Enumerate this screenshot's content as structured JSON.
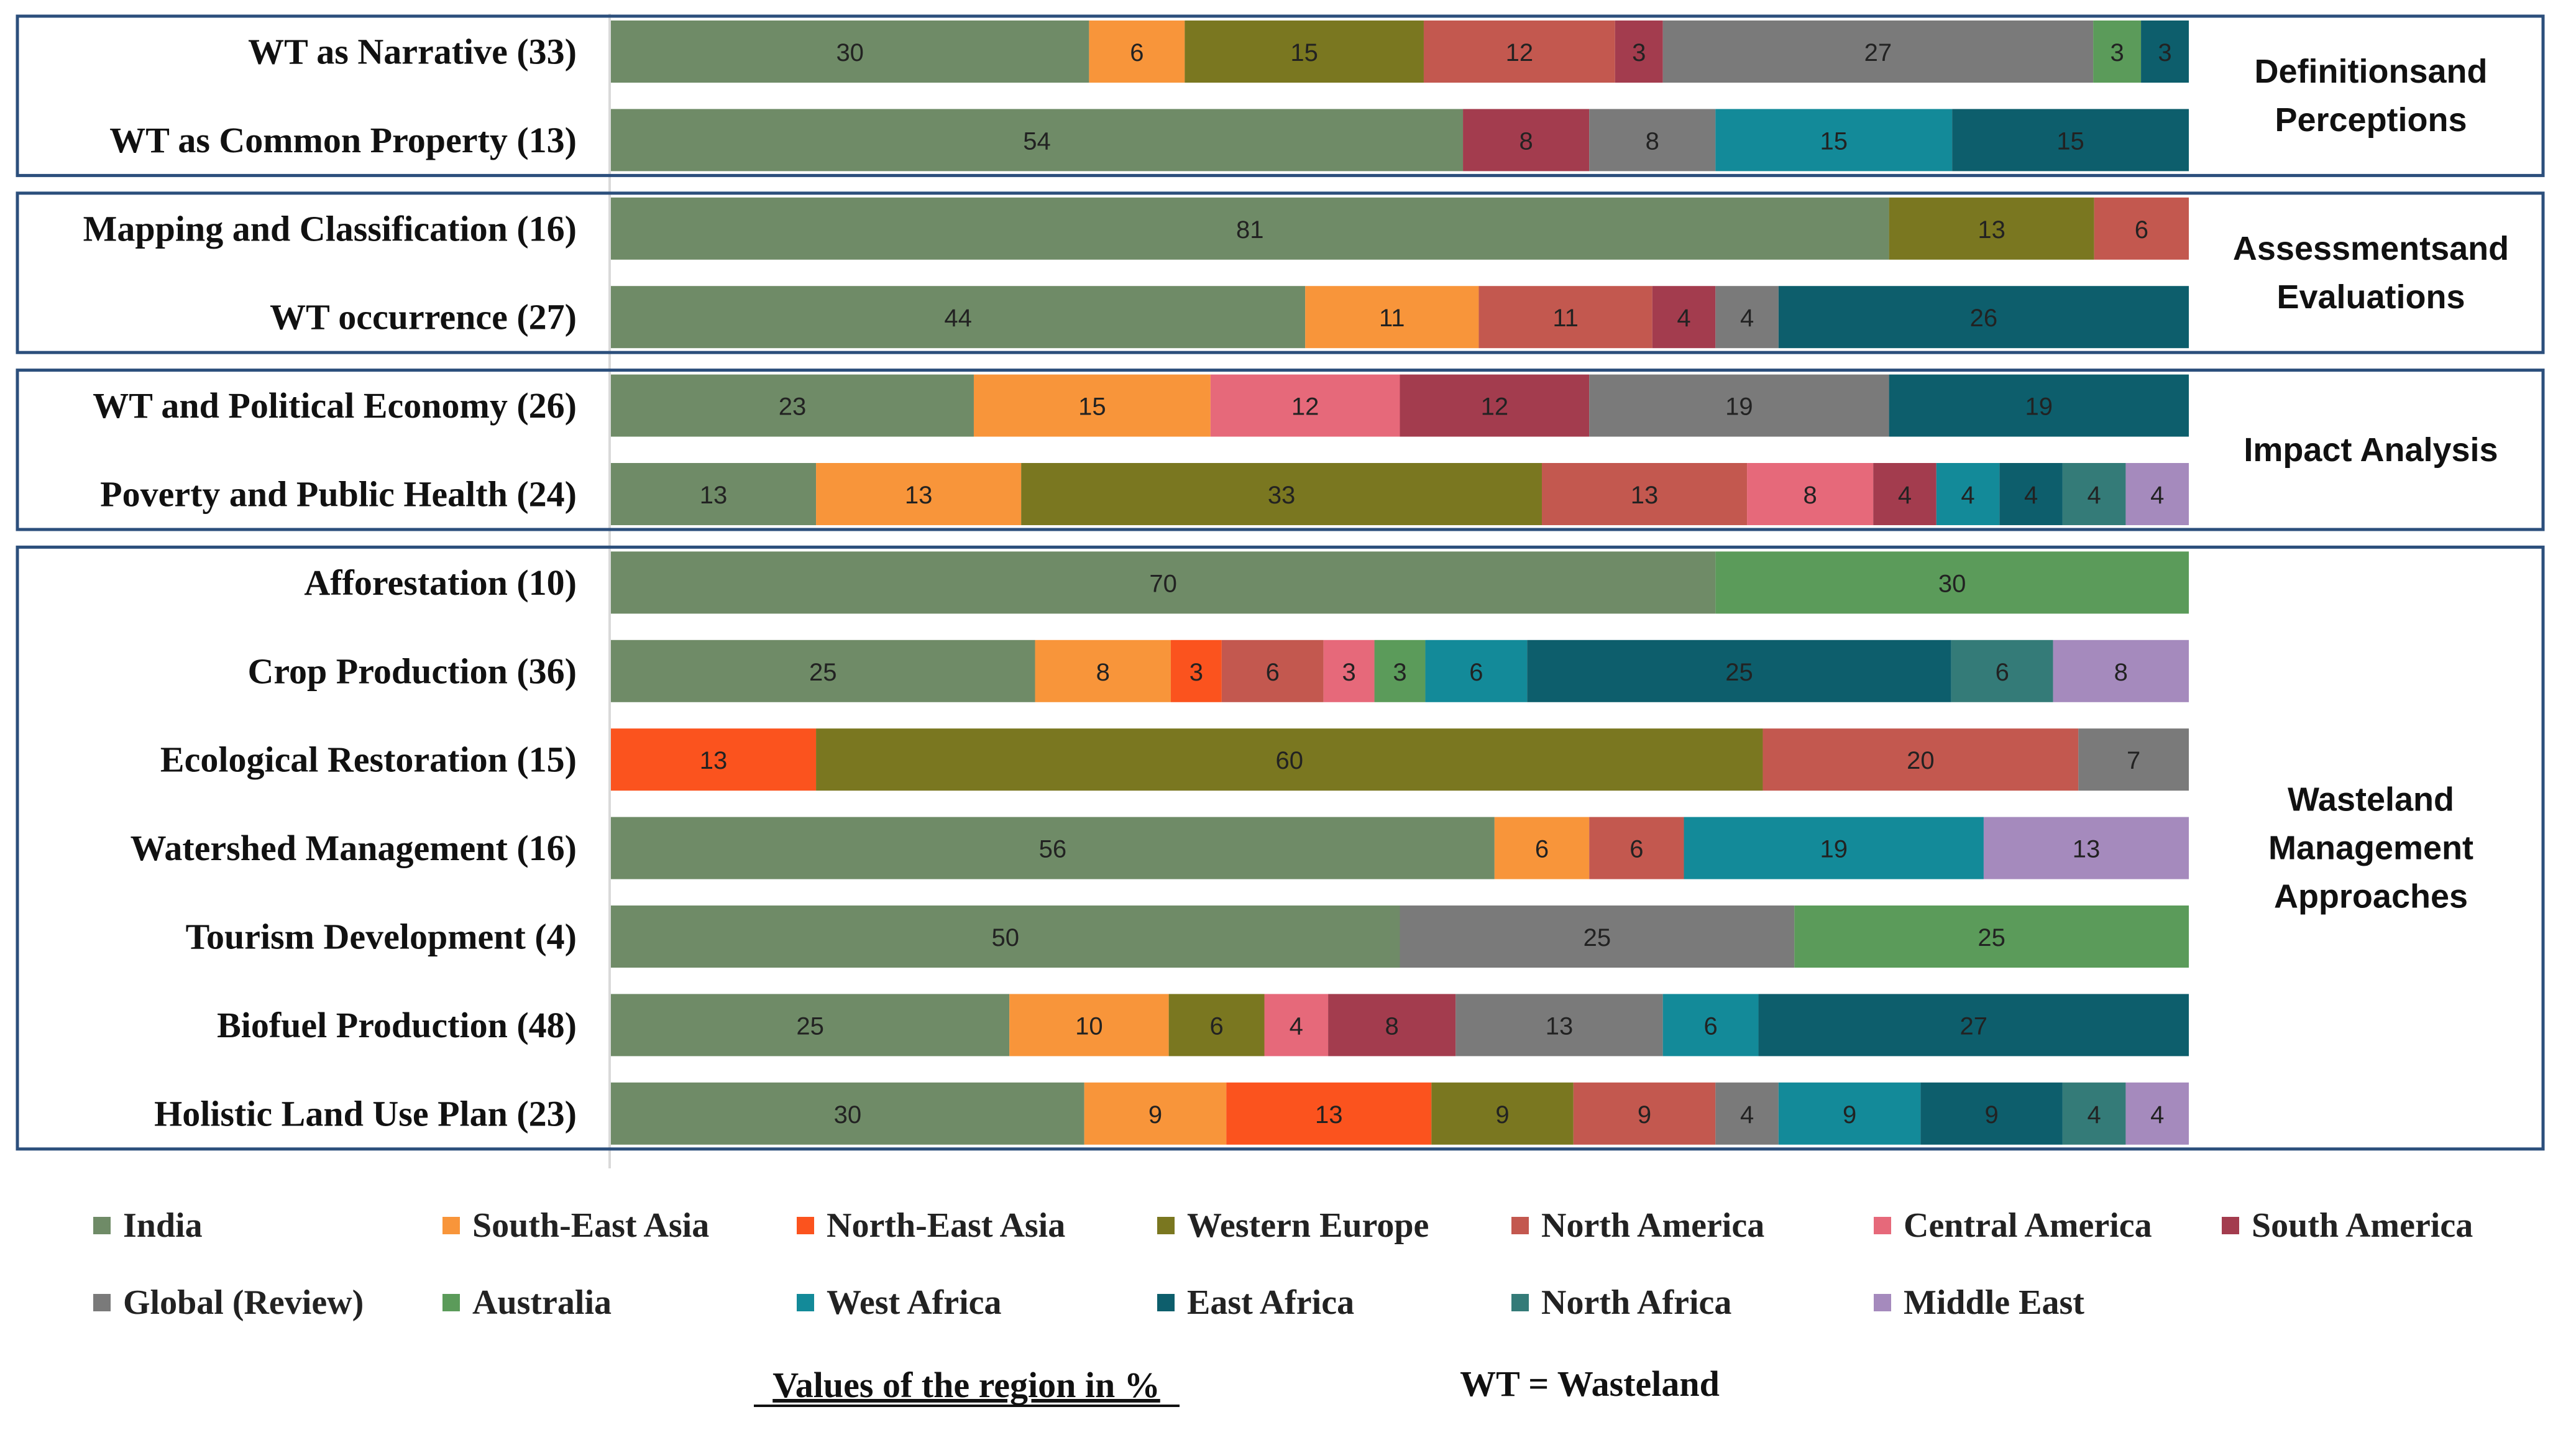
{
  "chart_data": {
    "type": "bar",
    "orientation": "horizontal",
    "stacked": true,
    "unit": "%",
    "xlim": [
      0,
      100
    ],
    "series": [
      {
        "name": "India",
        "color": "#6f8b67"
      },
      {
        "name": "South-East Asia",
        "color": "#f8953a"
      },
      {
        "name": "North-East Asia",
        "color": "#fb531e"
      },
      {
        "name": "Western Europe",
        "color": "#7a7720"
      },
      {
        "name": "North America",
        "color": "#c3584f"
      },
      {
        "name": "Central America",
        "color": "#e6697a"
      },
      {
        "name": "South America",
        "color": "#a33c4e"
      },
      {
        "name": "Global (Review)",
        "color": "#7a7a7a"
      },
      {
        "name": "Australia",
        "color": "#5b9b5a"
      },
      {
        "name": "West Africa",
        "color": "#138a99"
      },
      {
        "name": "East Africa",
        "color": "#0d5e6c"
      },
      {
        "name": "North Africa",
        "color": "#347b78"
      },
      {
        "name": "Middle East",
        "color": "#a58abd"
      }
    ],
    "groups": [
      {
        "label_lines": [
          "Definitionsand",
          "Perceptions"
        ],
        "rows": [
          {
            "label": "WT as Narrative (33)",
            "segments": [
              [
                "India",
                30
              ],
              [
                "South-East Asia",
                6
              ],
              [
                "Western Europe",
                15
              ],
              [
                "North America",
                12
              ],
              [
                "South America",
                3
              ],
              [
                "Global (Review)",
                27
              ],
              [
                "Australia",
                3
              ],
              [
                "East Africa",
                3
              ]
            ]
          },
          {
            "label": "WT as Common Property (13)",
            "segments": [
              [
                "India",
                54
              ],
              [
                "South America",
                8
              ],
              [
                "Global (Review)",
                8
              ],
              [
                "West Africa",
                15
              ],
              [
                "East Africa",
                15
              ]
            ]
          }
        ]
      },
      {
        "label_lines": [
          "Assessmentsand",
          "Evaluations"
        ],
        "rows": [
          {
            "label": "Mapping and Classification (16)",
            "segments": [
              [
                "India",
                81
              ],
              [
                "Western Europe",
                13
              ],
              [
                "North America",
                6
              ]
            ]
          },
          {
            "label": "WT occurrence (27)",
            "segments": [
              [
                "India",
                44
              ],
              [
                "South-East Asia",
                11
              ],
              [
                "North America",
                11
              ],
              [
                "South America",
                4
              ],
              [
                "Global (Review)",
                4
              ],
              [
                "East Africa",
                26
              ]
            ]
          }
        ]
      },
      {
        "label_lines": [
          "Impact Analysis"
        ],
        "rows": [
          {
            "label": "WT and  Political Economy (26)",
            "segments": [
              [
                "India",
                23
              ],
              [
                "South-East Asia",
                15
              ],
              [
                "Central America",
                12
              ],
              [
                "South America",
                12
              ],
              [
                "Global (Review)",
                19
              ],
              [
                "East Africa",
                19
              ]
            ]
          },
          {
            "label": "Poverty and Public Health (24)",
            "segments": [
              [
                "India",
                13
              ],
              [
                "South-East Asia",
                13
              ],
              [
                "Western Europe",
                33
              ],
              [
                "North America",
                13
              ],
              [
                "Central America",
                8
              ],
              [
                "South America",
                4
              ],
              [
                "West Africa",
                4
              ],
              [
                "East Africa",
                4
              ],
              [
                "North Africa",
                4
              ],
              [
                "Middle East",
                4
              ]
            ]
          }
        ]
      },
      {
        "label_lines": [
          "Wasteland",
          "Management",
          "Approaches"
        ],
        "rows": [
          {
            "label": "Afforestation (10)",
            "segments": [
              [
                "India",
                70
              ],
              [
                "Australia",
                30
              ]
            ]
          },
          {
            "label": "Crop Production (36)",
            "segments": [
              [
                "India",
                25
              ],
              [
                "South-East Asia",
                8
              ],
              [
                "North-East Asia",
                3
              ],
              [
                "North America",
                6
              ],
              [
                "Central America",
                3
              ],
              [
                "Australia",
                3
              ],
              [
                "West Africa",
                6
              ],
              [
                "East Africa",
                25
              ],
              [
                "North Africa",
                6
              ],
              [
                "Middle East",
                8
              ]
            ]
          },
          {
            "label": "Ecological Restoration (15)",
            "segments": [
              [
                "North-East Asia",
                13
              ],
              [
                "Western Europe",
                60
              ],
              [
                "North America",
                20
              ],
              [
                "Global (Review)",
                7
              ]
            ]
          },
          {
            "label": "Watershed Management (16)",
            "segments": [
              [
                "India",
                56
              ],
              [
                "South-East Asia",
                6
              ],
              [
                "North America",
                6
              ],
              [
                "West Africa",
                19
              ],
              [
                "Middle East",
                13
              ]
            ]
          },
          {
            "label": "Tourism Development (4)",
            "segments": [
              [
                "India",
                50
              ],
              [
                "Global (Review)",
                25
              ],
              [
                "Australia",
                25
              ]
            ]
          },
          {
            "label": "Biofuel Production (48)",
            "segments": [
              [
                "India",
                25
              ],
              [
                "South-East Asia",
                10
              ],
              [
                "Western Europe",
                6
              ],
              [
                "Central America",
                4
              ],
              [
                "South America",
                8
              ],
              [
                "Global (Review)",
                13
              ],
              [
                "West Africa",
                6
              ],
              [
                "East Africa",
                27
              ]
            ]
          },
          {
            "label": "Holistic  Land Use Plan (23)",
            "segments": [
              [
                "India",
                30
              ],
              [
                "South-East Asia",
                9
              ],
              [
                "North-East Asia",
                13
              ],
              [
                "Western Europe",
                9
              ],
              [
                "North America",
                9
              ],
              [
                "Global (Review)",
                4
              ],
              [
                "West Africa",
                9
              ],
              [
                "East Africa",
                9
              ],
              [
                "North Africa",
                4
              ],
              [
                "Middle East",
                4
              ]
            ]
          }
        ]
      }
    ],
    "xlabel": "Values of the region  in %",
    "note": "WT = Wasteland",
    "legend_position": "bottom"
  }
}
